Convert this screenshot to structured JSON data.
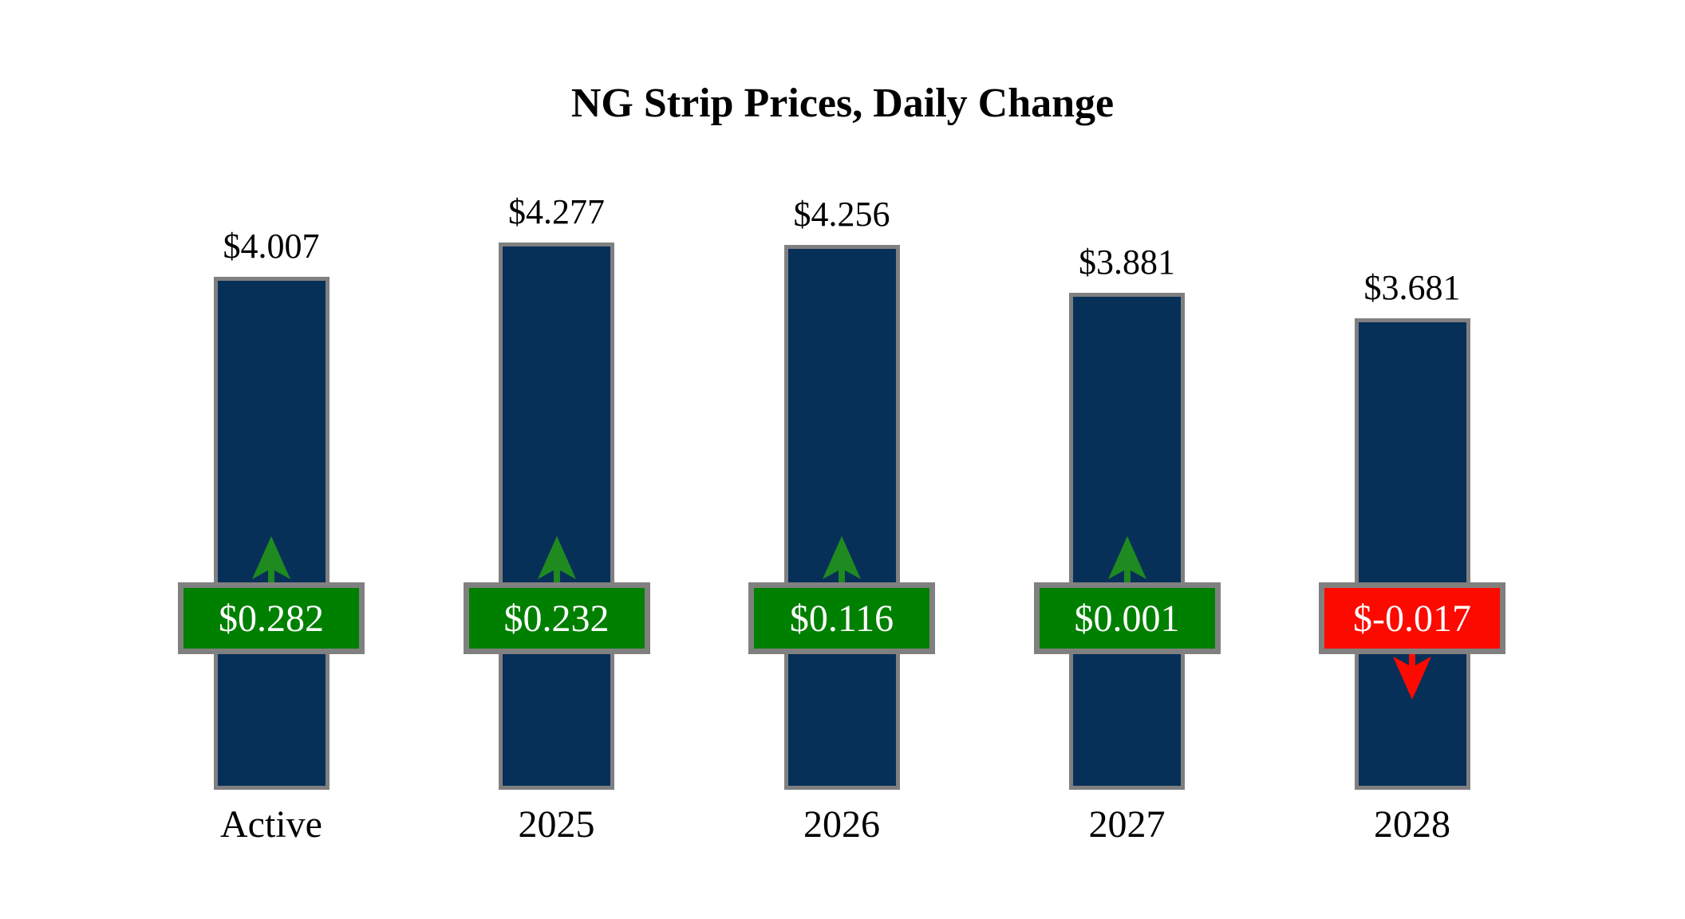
{
  "page": {
    "background": "#FFFFFF"
  },
  "chart_data": {
    "type": "bar",
    "title": "NG Strip Prices, Daily Change",
    "xlabel": "",
    "ylabel": "",
    "categories": [
      "Active",
      "2025",
      "2026",
      "2027",
      "2028"
    ],
    "series": [
      {
        "name": "Strip Price",
        "values": [
          4.007,
          4.277,
          4.256,
          3.881,
          3.681
        ]
      },
      {
        "name": "Daily Change",
        "values": [
          0.282,
          0.232,
          0.116,
          0.001,
          -0.017
        ]
      }
    ],
    "ylim": [
      0,
      4.277
    ],
    "grid": false,
    "legend": "none",
    "bars": [
      {
        "category": "Active",
        "price": 4.007,
        "price_label": "$4.007",
        "change": 0.282,
        "change_label": "$0.282",
        "direction": "up"
      },
      {
        "category": "2025",
        "price": 4.277,
        "price_label": "$4.277",
        "change": 0.232,
        "change_label": "$0.232",
        "direction": "up"
      },
      {
        "category": "2026",
        "price": 4.256,
        "price_label": "$4.256",
        "change": 0.116,
        "change_label": "$0.116",
        "direction": "up"
      },
      {
        "category": "2027",
        "price": 3.881,
        "price_label": "$3.881",
        "change": 0.001,
        "change_label": "$0.001",
        "direction": "up"
      },
      {
        "category": "2028",
        "price": 3.681,
        "price_label": "$3.681",
        "change": -0.017,
        "change_label": "$-0.017",
        "direction": "down"
      }
    ],
    "colors": {
      "bar_fill": "#073059",
      "bar_border": "#808080",
      "badge_border": "#808080",
      "up_badge": "#008000",
      "down_badge": "#FC0A00",
      "up_arrow": "#1F8A1F",
      "down_arrow": "#FC0A00",
      "label_text": "#000000",
      "badge_text": "#FFFFFF",
      "title_text": "#000000"
    }
  }
}
